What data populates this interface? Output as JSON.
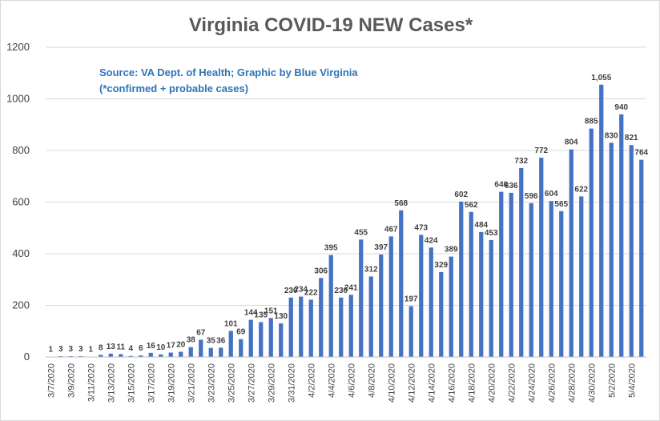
{
  "chart_data": {
    "type": "bar",
    "title": "Virginia COVID-19 NEW Cases*",
    "subtitle_lines": [
      "Source: VA Dept. of Health; Graphic by Blue Virginia",
      "(*confirmed + probable cases)"
    ],
    "xlabel": "",
    "ylabel": "",
    "ylim": [
      0,
      1200
    ],
    "yticks": [
      0,
      200,
      400,
      600,
      800,
      1000,
      1200
    ],
    "grid": true,
    "legend": "none",
    "bar_color": "#4472c4",
    "categories": [
      "3/7/2020",
      "3/8/2020",
      "3/9/2020",
      "3/10/2020",
      "3/11/2020",
      "3/12/2020",
      "3/13/2020",
      "3/14/2020",
      "3/15/2020",
      "3/16/2020",
      "3/17/2020",
      "3/18/2020",
      "3/19/2020",
      "3/20/2020",
      "3/21/2020",
      "3/22/2020",
      "3/23/2020",
      "3/24/2020",
      "3/25/2020",
      "3/26/2020",
      "3/27/2020",
      "3/28/2020",
      "3/29/2020",
      "3/30/2020",
      "3/31/2020",
      "4/1/2020",
      "4/2/2020",
      "4/3/2020",
      "4/4/2020",
      "4/5/2020",
      "4/6/2020",
      "4/7/2020",
      "4/8/2020",
      "4/9/2020",
      "4/10/2020",
      "4/11/2020",
      "4/12/2020",
      "4/13/2020",
      "4/14/2020",
      "4/15/2020",
      "4/16/2020",
      "4/17/2020",
      "4/18/2020",
      "4/19/2020",
      "4/20/2020",
      "4/21/2020",
      "4/22/2020",
      "4/23/2020",
      "4/24/2020",
      "4/25/2020",
      "4/26/2020",
      "4/27/2020",
      "4/28/2020",
      "4/29/2020",
      "4/30/2020",
      "5/1/2020",
      "5/2/2020",
      "5/3/2020",
      "5/4/2020",
      "5/5/2020"
    ],
    "values": [
      1,
      3,
      3,
      3,
      1,
      8,
      13,
      11,
      4,
      6,
      16,
      10,
      17,
      20,
      38,
      67,
      35,
      36,
      101,
      69,
      144,
      135,
      151,
      130,
      230,
      234,
      222,
      306,
      395,
      230,
      241,
      455,
      312,
      397,
      467,
      568,
      197,
      473,
      424,
      329,
      389,
      602,
      562,
      484,
      453,
      640,
      636,
      732,
      596,
      772,
      604,
      565,
      804,
      622,
      885,
      1055,
      830,
      940,
      821,
      764
    ],
    "data_labels": [
      "1",
      "3",
      "3",
      "3",
      "1",
      "8",
      "13",
      "11",
      "4",
      "6",
      "16",
      "10",
      "17",
      "20",
      "38",
      "67",
      "35",
      "36",
      "101",
      "69",
      "144",
      "135",
      "151",
      "130",
      "230",
      "234",
      "222",
      "306",
      "395",
      "230",
      "241",
      "455",
      "312",
      "397",
      "467",
      "568",
      "197",
      "473",
      "424",
      "329",
      "389",
      "602",
      "562",
      "484",
      "453",
      "640",
      "636",
      "732",
      "596",
      "772",
      "604",
      "565",
      "804",
      "622",
      "885",
      "1,055",
      "830",
      "940",
      "821",
      "764"
    ],
    "x_tick_labels_shown_every": 2
  }
}
